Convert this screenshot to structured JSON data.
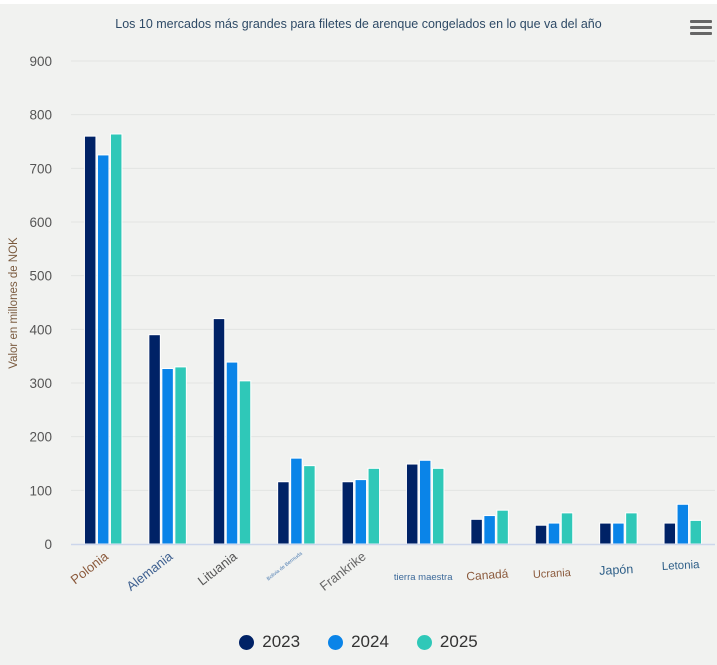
{
  "chart_data": {
    "type": "bar",
    "title": "Los 10 mercados más grandes para filetes de arenque congelados en lo que va del año",
    "xlabel": "",
    "ylabel": "Valor en millones de NOK",
    "ylim": [
      0,
      900
    ],
    "yticks": [
      "0",
      "100",
      "200",
      "300",
      "400",
      "500",
      "600",
      "700",
      "800",
      "900"
    ],
    "grid": true,
    "legend_position": "bottom-center",
    "categories": [
      "Polonia",
      "Alemania",
      "Lituania",
      "Bolivia de Bermuda",
      "Frankrike",
      "tierra maestra",
      "Canadá",
      "Ucrania",
      "Japón",
      "Letonia"
    ],
    "category_label_colors": [
      "#8b5a3c",
      "#3d5f8f",
      "#555555",
      "#4a7ab0",
      "#666666",
      "#3d6a9a",
      "#8b5a3c",
      "#8b5a3c",
      "#2e5f88",
      "#2e5f88"
    ],
    "series": [
      {
        "name": "2023",
        "color": "#002266",
        "values": [
          760,
          390,
          420,
          116,
          116,
          149,
          46,
          35,
          39,
          39
        ]
      },
      {
        "name": "2024",
        "color": "#0a84e8",
        "values": [
          725,
          327,
          339,
          160,
          120,
          156,
          53,
          39,
          39,
          74
        ]
      },
      {
        "name": "2025",
        "color": "#2fc8b8",
        "values": [
          764,
          330,
          304,
          146,
          141,
          141,
          63,
          58,
          58,
          44
        ]
      }
    ]
  },
  "ui": {
    "menu_icon": "hamburger-menu-icon"
  }
}
